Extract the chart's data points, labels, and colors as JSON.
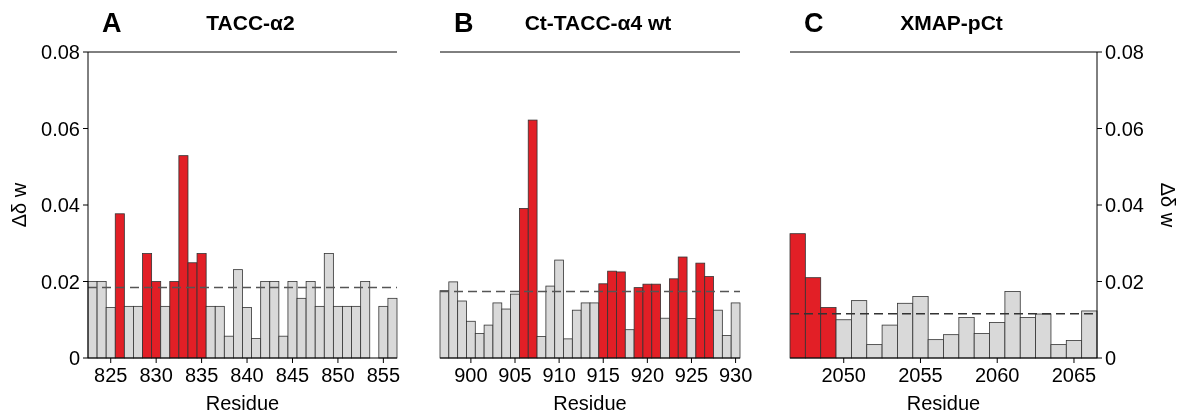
{
  "chart_data": [
    {
      "type": "bar",
      "title": "TACC-α2",
      "annotations": [
        "A"
      ],
      "xlabel": "Residue",
      "ylabel": "Δδ w",
      "ylim": [
        0,
        0.08
      ],
      "yticks": [
        0,
        0.02,
        0.04,
        0.06,
        0.08
      ],
      "categories": [
        null,
        null,
        "825",
        null,
        null,
        null,
        null,
        "830",
        null,
        null,
        null,
        null,
        "835",
        null,
        null,
        null,
        null,
        "840",
        null,
        null,
        null,
        null,
        "845",
        null,
        null,
        null,
        null,
        "850",
        null,
        null,
        null,
        null,
        "855",
        null
      ],
      "values": [
        0.02,
        0.02,
        0.0132,
        0.0377,
        0.0135,
        0.0135,
        0.0273,
        0.02,
        0.0135,
        0.02,
        0.0529,
        0.0249,
        0.0273,
        0.0135,
        0.0135,
        0.0057,
        0.0231,
        0.0132,
        0.0051,
        0.02,
        0.02,
        0.0057,
        0.02,
        0.0156,
        0.02,
        0.0135,
        0.0273,
        0.0135,
        0.0135,
        0.0135,
        0.02,
        null,
        0.0135,
        0.0156
      ],
      "colors": [
        "#d9d9d9",
        "#d9d9d9",
        "#d9d9d9",
        "#e21f26",
        "#d9d9d9",
        "#d9d9d9",
        "#e21f26",
        "#e21f26",
        "#d9d9d9",
        "#e21f26",
        "#e21f26",
        "#e21f26",
        "#e21f26",
        "#d9d9d9",
        "#d9d9d9",
        "#d9d9d9",
        "#d9d9d9",
        "#d9d9d9",
        "#d9d9d9",
        "#d9d9d9",
        "#d9d9d9",
        "#d9d9d9",
        "#d9d9d9",
        "#d9d9d9",
        "#d9d9d9",
        "#d9d9d9",
        "#d9d9d9",
        "#d9d9d9",
        "#d9d9d9",
        "#d9d9d9",
        "#d9d9d9",
        null,
        "#d9d9d9",
        "#d9d9d9"
      ],
      "ref_lines": [
        {
          "axis": "y",
          "value": 0.0184,
          "color": "#555555",
          "line_style": "dashed"
        }
      ]
    },
    {
      "type": "bar",
      "title": "Ct-TACC-α4 wt",
      "annotations": [
        "B"
      ],
      "xlabel": "Residue",
      "ylim": [
        0,
        0.08
      ],
      "tick_labels": "x",
      "categories": [
        null,
        null,
        null,
        "900",
        null,
        null,
        null,
        null,
        "905",
        null,
        null,
        null,
        null,
        "910",
        null,
        null,
        null,
        null,
        "915",
        null,
        null,
        null,
        null,
        "920",
        null,
        null,
        null,
        null,
        "925",
        null,
        null,
        null,
        null,
        "930"
      ],
      "values": [
        0.0176,
        0.0199,
        0.0149,
        0.0096,
        0.0064,
        0.0086,
        0.0144,
        0.0128,
        0.0167,
        0.0391,
        0.0622,
        0.0056,
        0.0188,
        0.0256,
        0.005,
        0.0125,
        0.0144,
        0.0144,
        0.0194,
        0.0227,
        0.0225,
        0.0074,
        0.0184,
        0.0193,
        0.0193,
        0.0104,
        0.0207,
        0.0264,
        0.0103,
        0.0248,
        0.0213,
        0.0125,
        0.0059,
        0.0144
      ],
      "colors": [
        "#d9d9d9",
        "#d9d9d9",
        "#d9d9d9",
        "#d9d9d9",
        "#d9d9d9",
        "#d9d9d9",
        "#d9d9d9",
        "#d9d9d9",
        "#d9d9d9",
        "#e21f26",
        "#e21f26",
        "#d9d9d9",
        "#d9d9d9",
        "#d9d9d9",
        "#d9d9d9",
        "#d9d9d9",
        "#d9d9d9",
        "#d9d9d9",
        "#e21f26",
        "#e21f26",
        "#e21f26",
        "#d9d9d9",
        "#e21f26",
        "#e21f26",
        "#e21f26",
        "#d9d9d9",
        "#e21f26",
        "#e21f26",
        "#d9d9d9",
        "#e21f26",
        "#e21f26",
        "#d9d9d9",
        "#d9d9d9",
        "#d9d9d9"
      ],
      "ref_lines": [
        {
          "axis": "y",
          "value": 0.0174,
          "color": "#555555",
          "line_style": "dashed"
        }
      ]
    },
    {
      "type": "bar",
      "title": "XMAP-pCt",
      "annotations": [
        "C"
      ],
      "xlabel": "Residue",
      "y2label": "Δδ w",
      "y2lim": [
        0,
        0.08
      ],
      "y2ticks": [
        0,
        0.02,
        0.04,
        0.06,
        0.08
      ],
      "categories": [
        null,
        null,
        null,
        "2050",
        null,
        null,
        null,
        null,
        "2055",
        null,
        null,
        null,
        null,
        "2060",
        null,
        null,
        null,
        null,
        "2065",
        null
      ],
      "series": [
        {
          "axis": "y2",
          "values": [
            0.0325,
            0.021,
            0.0132,
            0.01,
            0.015,
            0.0035,
            0.0086,
            0.0143,
            0.0161,
            0.0048,
            0.0061,
            0.0106,
            0.0064,
            0.0093,
            0.0174,
            0.0106,
            0.0115,
            0.0035,
            0.0046,
            0.0123
          ],
          "colors": [
            "#e21f26",
            "#e21f26",
            "#e21f26",
            "#d9d9d9",
            "#d9d9d9",
            "#d9d9d9",
            "#d9d9d9",
            "#d9d9d9",
            "#d9d9d9",
            "#d9d9d9",
            "#d9d9d9",
            "#d9d9d9",
            "#d9d9d9",
            "#d9d9d9",
            "#d9d9d9",
            "#d9d9d9",
            "#d9d9d9",
            "#d9d9d9",
            "#d9d9d9",
            "#d9d9d9"
          ]
        }
      ],
      "ref_lines": [
        {
          "axis": "y2",
          "value": 0.0116,
          "color": "#333333",
          "line_style": "dashed"
        }
      ]
    }
  ]
}
